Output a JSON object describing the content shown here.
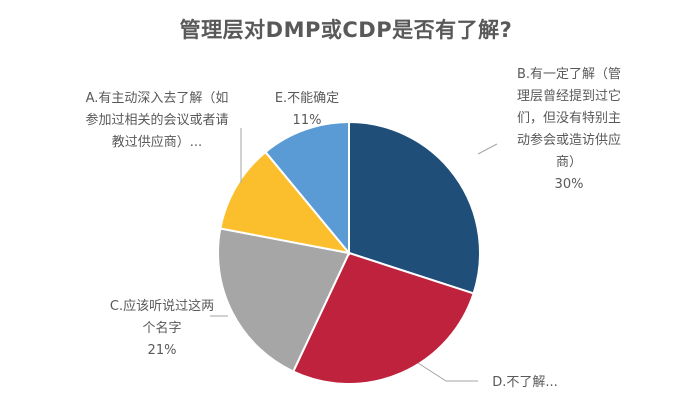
{
  "chart_data": {
    "type": "pie",
    "title": "管理层对DMP或CDP是否有了解?",
    "colors": [
      "#1F4E79",
      "#BE223D",
      "#A6A6A6",
      "#FBBF2E",
      "#5B9BD5"
    ],
    "slices": [
      {
        "label_lines": [
          "B.有一定了解（管",
          "理层曾经提到过它",
          "们，但没有特别主",
          "动参会或造访供应",
          "商）"
        ],
        "value": 30,
        "percent": "30%"
      },
      {
        "label_lines": [
          "D.不了解..."
        ],
        "value": 27,
        "percent": ""
      },
      {
        "label_lines": [
          "C.应该听说过这两",
          "个名字"
        ],
        "value": 21,
        "percent": "21%"
      },
      {
        "label_lines": [
          "A.有主动深入去了解（如",
          "参加过相关的会议或者请",
          "教过供应商）..."
        ],
        "value": 11,
        "percent": ""
      },
      {
        "label_lines": [
          "E.不能确定"
        ],
        "value": 11,
        "percent": "11%"
      }
    ]
  }
}
